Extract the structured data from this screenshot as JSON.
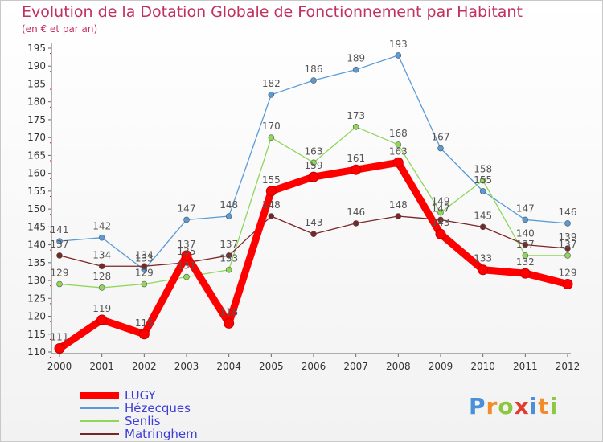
{
  "chart_data": {
    "type": "line",
    "title": "Evolution de la Dotation Globale de Fonctionnement par Habitant",
    "subtitle": "(en € et par an)",
    "x": [
      "2000",
      "2001",
      "2002",
      "2003",
      "2004",
      "2005",
      "2006",
      "2007",
      "2008",
      "2009",
      "2010",
      "2011",
      "2012"
    ],
    "ylim": [
      110,
      195
    ],
    "yticks": [
      110,
      115,
      120,
      125,
      130,
      135,
      140,
      145,
      150,
      155,
      160,
      165,
      170,
      175,
      180,
      185,
      190,
      195
    ],
    "grid": false,
    "legend_position": "bottom-left",
    "series": [
      {
        "name": "LUGY",
        "color": "#ff0000",
        "values": [
          111,
          119,
          115,
          137,
          118,
          155,
          159,
          161,
          163,
          143,
          133,
          132,
          129
        ]
      },
      {
        "name": "Hézecques",
        "color": "#5b9bd5",
        "values": [
          141,
          142,
          133,
          147,
          148,
          182,
          186,
          189,
          193,
          167,
          155,
          147,
          146
        ]
      },
      {
        "name": "Senlis",
        "color": "#8fd65a",
        "values": [
          129,
          128,
          129,
          131,
          133,
          170,
          163,
          173,
          168,
          149,
          158,
          137,
          137
        ]
      },
      {
        "name": "Matringhem",
        "color": "#7a2626",
        "values": [
          137,
          134,
          134,
          135,
          137,
          148,
          143,
          146,
          148,
          147,
          145,
          140,
          139
        ]
      }
    ]
  },
  "logo": {
    "text": "Proxiti",
    "colors": [
      "#4a90d9",
      "#f28c28",
      "#8dc63f",
      "#e03c31"
    ]
  }
}
